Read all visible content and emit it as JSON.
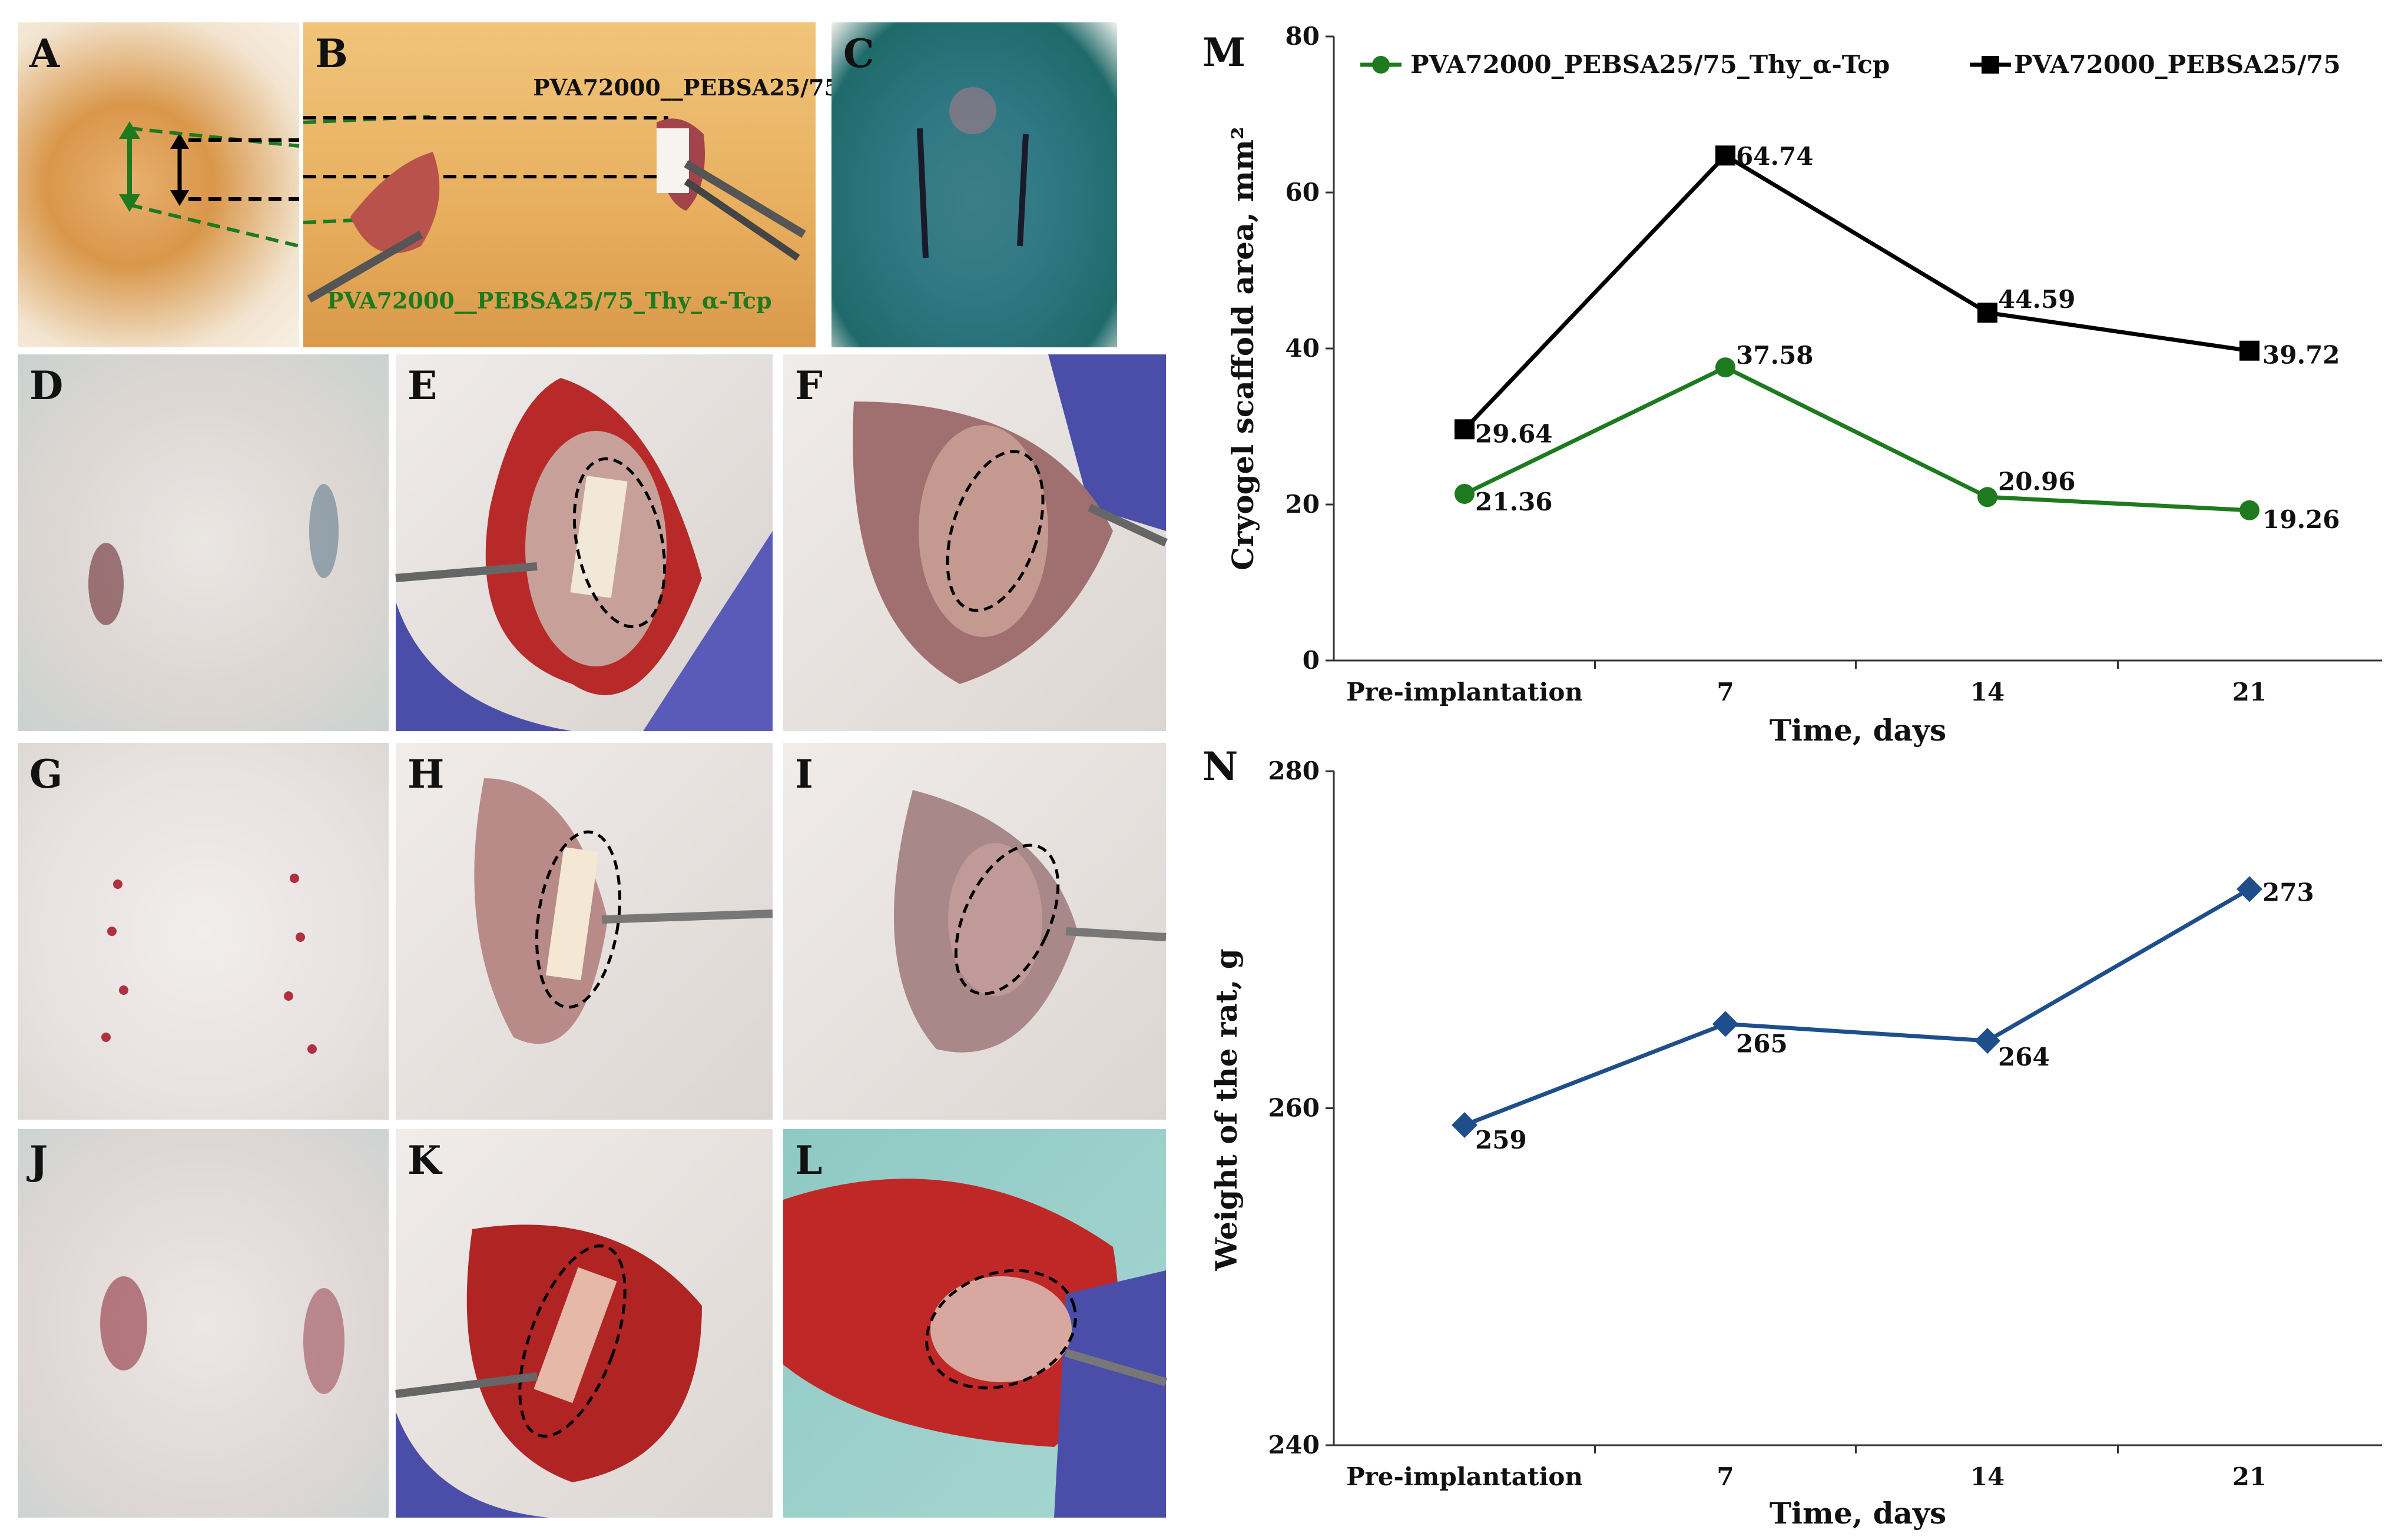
{
  "panel_letters": [
    "A",
    "B",
    "C",
    "D",
    "E",
    "F",
    "G",
    "H",
    "I",
    "J",
    "K",
    "L"
  ],
  "panel_b": {
    "top_label": "PVA72000__PEBSA25/75",
    "bottom_label": "PVA72000__PEBSA25/75_Thy_α-Tcp"
  },
  "colors": {
    "green": "#1e7a1e",
    "black": "#000000",
    "blue": "#1f4e8c"
  },
  "chart_data": [
    {
      "panel": "M",
      "type": "line",
      "categories": [
        "Pre-implantation",
        "7",
        "14",
        "21"
      ],
      "xlabel": "Time, days",
      "ylabel": "Cryogel scaffold area, mm²",
      "ylim": [
        0,
        80
      ],
      "yticks": [
        "0",
        "20",
        "40",
        "60",
        "80"
      ],
      "legend_position": "top",
      "series": [
        {
          "name": "PVA72000_PEBSA25/75_Thy_α-Tcp",
          "color": "#1e7a1e",
          "marker": "circle",
          "values": [
            21.36,
            37.58,
            20.96,
            19.26
          ],
          "labels": [
            "21.36",
            "37.58",
            "20.96",
            "19.26"
          ]
        },
        {
          "name": "PVA72000_PEBSA25/75",
          "color": "#000000",
          "marker": "square",
          "values": [
            29.64,
            64.74,
            44.59,
            39.72
          ],
          "labels": [
            "29.64",
            "64.74",
            "44.59",
            "39.72"
          ]
        }
      ]
    },
    {
      "panel": "N",
      "type": "line",
      "categories": [
        "Pre-implantation",
        "7",
        "14",
        "21"
      ],
      "xlabel": "Time, days",
      "ylabel": "Weight of the rat, g",
      "ylim": [
        240,
        280
      ],
      "yticks": [
        "240",
        "260",
        "280"
      ],
      "series": [
        {
          "name": "Weight",
          "color": "#1f4e8c",
          "marker": "diamond",
          "values": [
            259,
            265,
            264,
            273
          ],
          "labels": [
            "259",
            "265",
            "264",
            "273"
          ]
        }
      ]
    }
  ]
}
